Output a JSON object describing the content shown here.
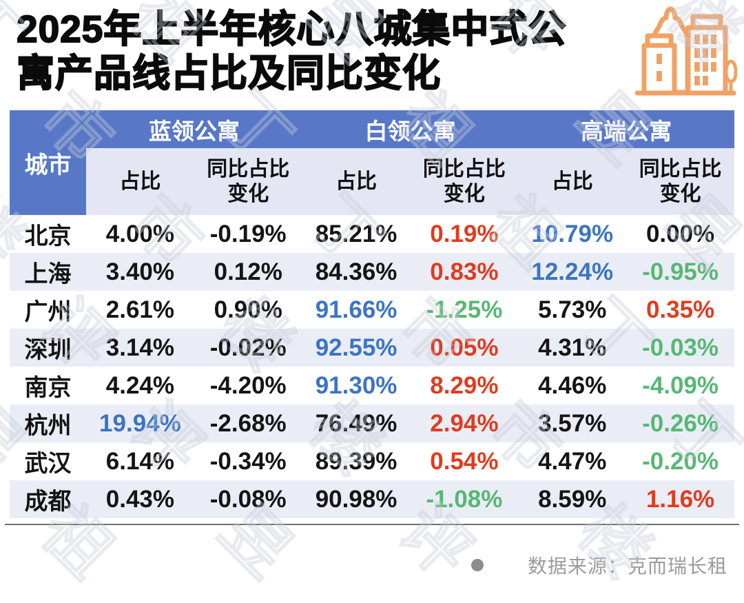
{
  "title": {
    "line1": "2025年上半年核心八城集中式公",
    "line2": "寓产品线占比及同比变化"
  },
  "icon": {
    "name": "city-buildings",
    "color": "#F0A265"
  },
  "table": {
    "corner_header": "城市",
    "groups": [
      {
        "label": "蓝领公寓"
      },
      {
        "label": "白领公寓"
      },
      {
        "label": "高端公寓"
      }
    ],
    "sub_headers": {
      "share": "占比",
      "yoy": "同比占比变化"
    },
    "rows": [
      {
        "city": "北京",
        "values": [
          [
            "4.00%",
            "k"
          ],
          [
            "-0.19%",
            "k"
          ],
          [
            "85.21%",
            "k"
          ],
          [
            "0.19%",
            "r"
          ],
          [
            "10.79%",
            "b"
          ],
          [
            "0.00%",
            "k"
          ]
        ]
      },
      {
        "city": "上海",
        "values": [
          [
            "3.40%",
            "k"
          ],
          [
            "0.12%",
            "k"
          ],
          [
            "84.36%",
            "k"
          ],
          [
            "0.83%",
            "r"
          ],
          [
            "12.24%",
            "b"
          ],
          [
            "-0.95%",
            "g"
          ]
        ]
      },
      {
        "city": "广州",
        "values": [
          [
            "2.61%",
            "k"
          ],
          [
            "0.90%",
            "k"
          ],
          [
            "91.66%",
            "b"
          ],
          [
            "-1.25%",
            "g"
          ],
          [
            "5.73%",
            "k"
          ],
          [
            "0.35%",
            "r"
          ]
        ]
      },
      {
        "city": "深圳",
        "values": [
          [
            "3.14%",
            "k"
          ],
          [
            "-0.02%",
            "k"
          ],
          [
            "92.55%",
            "b"
          ],
          [
            "0.05%",
            "r"
          ],
          [
            "4.31%",
            "k"
          ],
          [
            "-0.03%",
            "g"
          ]
        ]
      },
      {
        "city": "南京",
        "values": [
          [
            "4.24%",
            "k"
          ],
          [
            "-4.20%",
            "k"
          ],
          [
            "91.30%",
            "b"
          ],
          [
            "8.29%",
            "r"
          ],
          [
            "4.46%",
            "k"
          ],
          [
            "-4.09%",
            "g"
          ]
        ]
      },
      {
        "city": "杭州",
        "values": [
          [
            "19.94%",
            "b"
          ],
          [
            "-2.68%",
            "k"
          ],
          [
            "76.49%",
            "k"
          ],
          [
            "2.94%",
            "r"
          ],
          [
            "3.57%",
            "k"
          ],
          [
            "-0.26%",
            "g"
          ]
        ]
      },
      {
        "city": "武汉",
        "values": [
          [
            "6.14%",
            "k"
          ],
          [
            "-0.34%",
            "k"
          ],
          [
            "89.39%",
            "k"
          ],
          [
            "0.54%",
            "r"
          ],
          [
            "4.47%",
            "k"
          ],
          [
            "-0.20%",
            "g"
          ]
        ]
      },
      {
        "city": "成都",
        "values": [
          [
            "0.43%",
            "k"
          ],
          [
            "-0.08%",
            "k"
          ],
          [
            "90.98%",
            "k"
          ],
          [
            "-1.08%",
            "g"
          ],
          [
            "8.59%",
            "k"
          ],
          [
            "1.16%",
            "r"
          ]
        ]
      }
    ]
  },
  "footer": {
    "source": "数据来源：克而瑞长租"
  },
  "watermark": {
    "text": "丁祖昱评楼市"
  },
  "colors": {
    "header_blue": "#5878C7",
    "subheader_bg": "#E4E7F3",
    "alt_row_bg": "#EAEDF6",
    "value_black": "#151515",
    "value_red": "#E23B1E",
    "value_green": "#57B873",
    "value_blue": "#3D74C4",
    "icon_orange": "#F0A265",
    "source_gray": "#9b9b9b"
  },
  "chart_data": {
    "type": "table",
    "title": "2025年上半年核心八城集中式公寓产品线占比及同比变化",
    "columns": [
      "城市",
      "蓝领公寓 占比",
      "蓝领公寓 同比占比变化",
      "白领公寓 占比",
      "白领公寓 同比占比变化",
      "高端公寓 占比",
      "高端公寓 同比占比变化"
    ],
    "rows": [
      [
        "北京",
        "4.00%",
        "-0.19%",
        "85.21%",
        "0.19%",
        "10.79%",
        "0.00%"
      ],
      [
        "上海",
        "3.40%",
        "0.12%",
        "84.36%",
        "0.83%",
        "12.24%",
        "-0.95%"
      ],
      [
        "广州",
        "2.61%",
        "0.90%",
        "91.66%",
        "-1.25%",
        "5.73%",
        "0.35%"
      ],
      [
        "深圳",
        "3.14%",
        "-0.02%",
        "92.55%",
        "0.05%",
        "4.31%",
        "-0.03%"
      ],
      [
        "南京",
        "4.24%",
        "-4.20%",
        "91.30%",
        "8.29%",
        "4.46%",
        "-4.09%"
      ],
      [
        "杭州",
        "19.94%",
        "-2.68%",
        "76.49%",
        "2.94%",
        "3.57%",
        "-0.26%"
      ],
      [
        "武汉",
        "6.14%",
        "-0.34%",
        "89.39%",
        "0.54%",
        "4.47%",
        "-0.20%"
      ],
      [
        "成都",
        "0.43%",
        "-0.08%",
        "90.98%",
        "-1.08%",
        "8.59%",
        "1.16%"
      ]
    ],
    "source": "数据来源：克而瑞长租"
  }
}
